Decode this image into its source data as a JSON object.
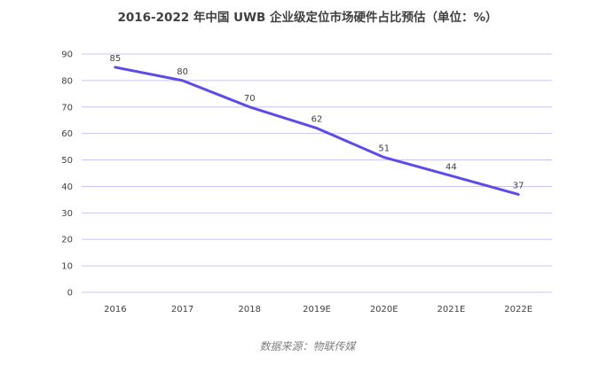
{
  "chart_data": {
    "type": "line",
    "title": "2016-2022 年中国 UWB 企业级定位市场硬件占比预估（单位：%）",
    "categories": [
      "2016",
      "2017",
      "2018",
      "2019E",
      "2020E",
      "2021E",
      "2022E"
    ],
    "series": [
      {
        "values": [
          85,
          80,
          70,
          62,
          51,
          44,
          37
        ],
        "color": "#5B4CE8"
      }
    ],
    "ylim": [
      0,
      90
    ],
    "yticks": [
      0,
      10,
      20,
      30,
      40,
      50,
      60,
      70,
      80,
      90
    ],
    "grid": true,
    "gridColor": "#C9C4F5",
    "legend": "none"
  },
  "source": "数据来源：物联传媒"
}
